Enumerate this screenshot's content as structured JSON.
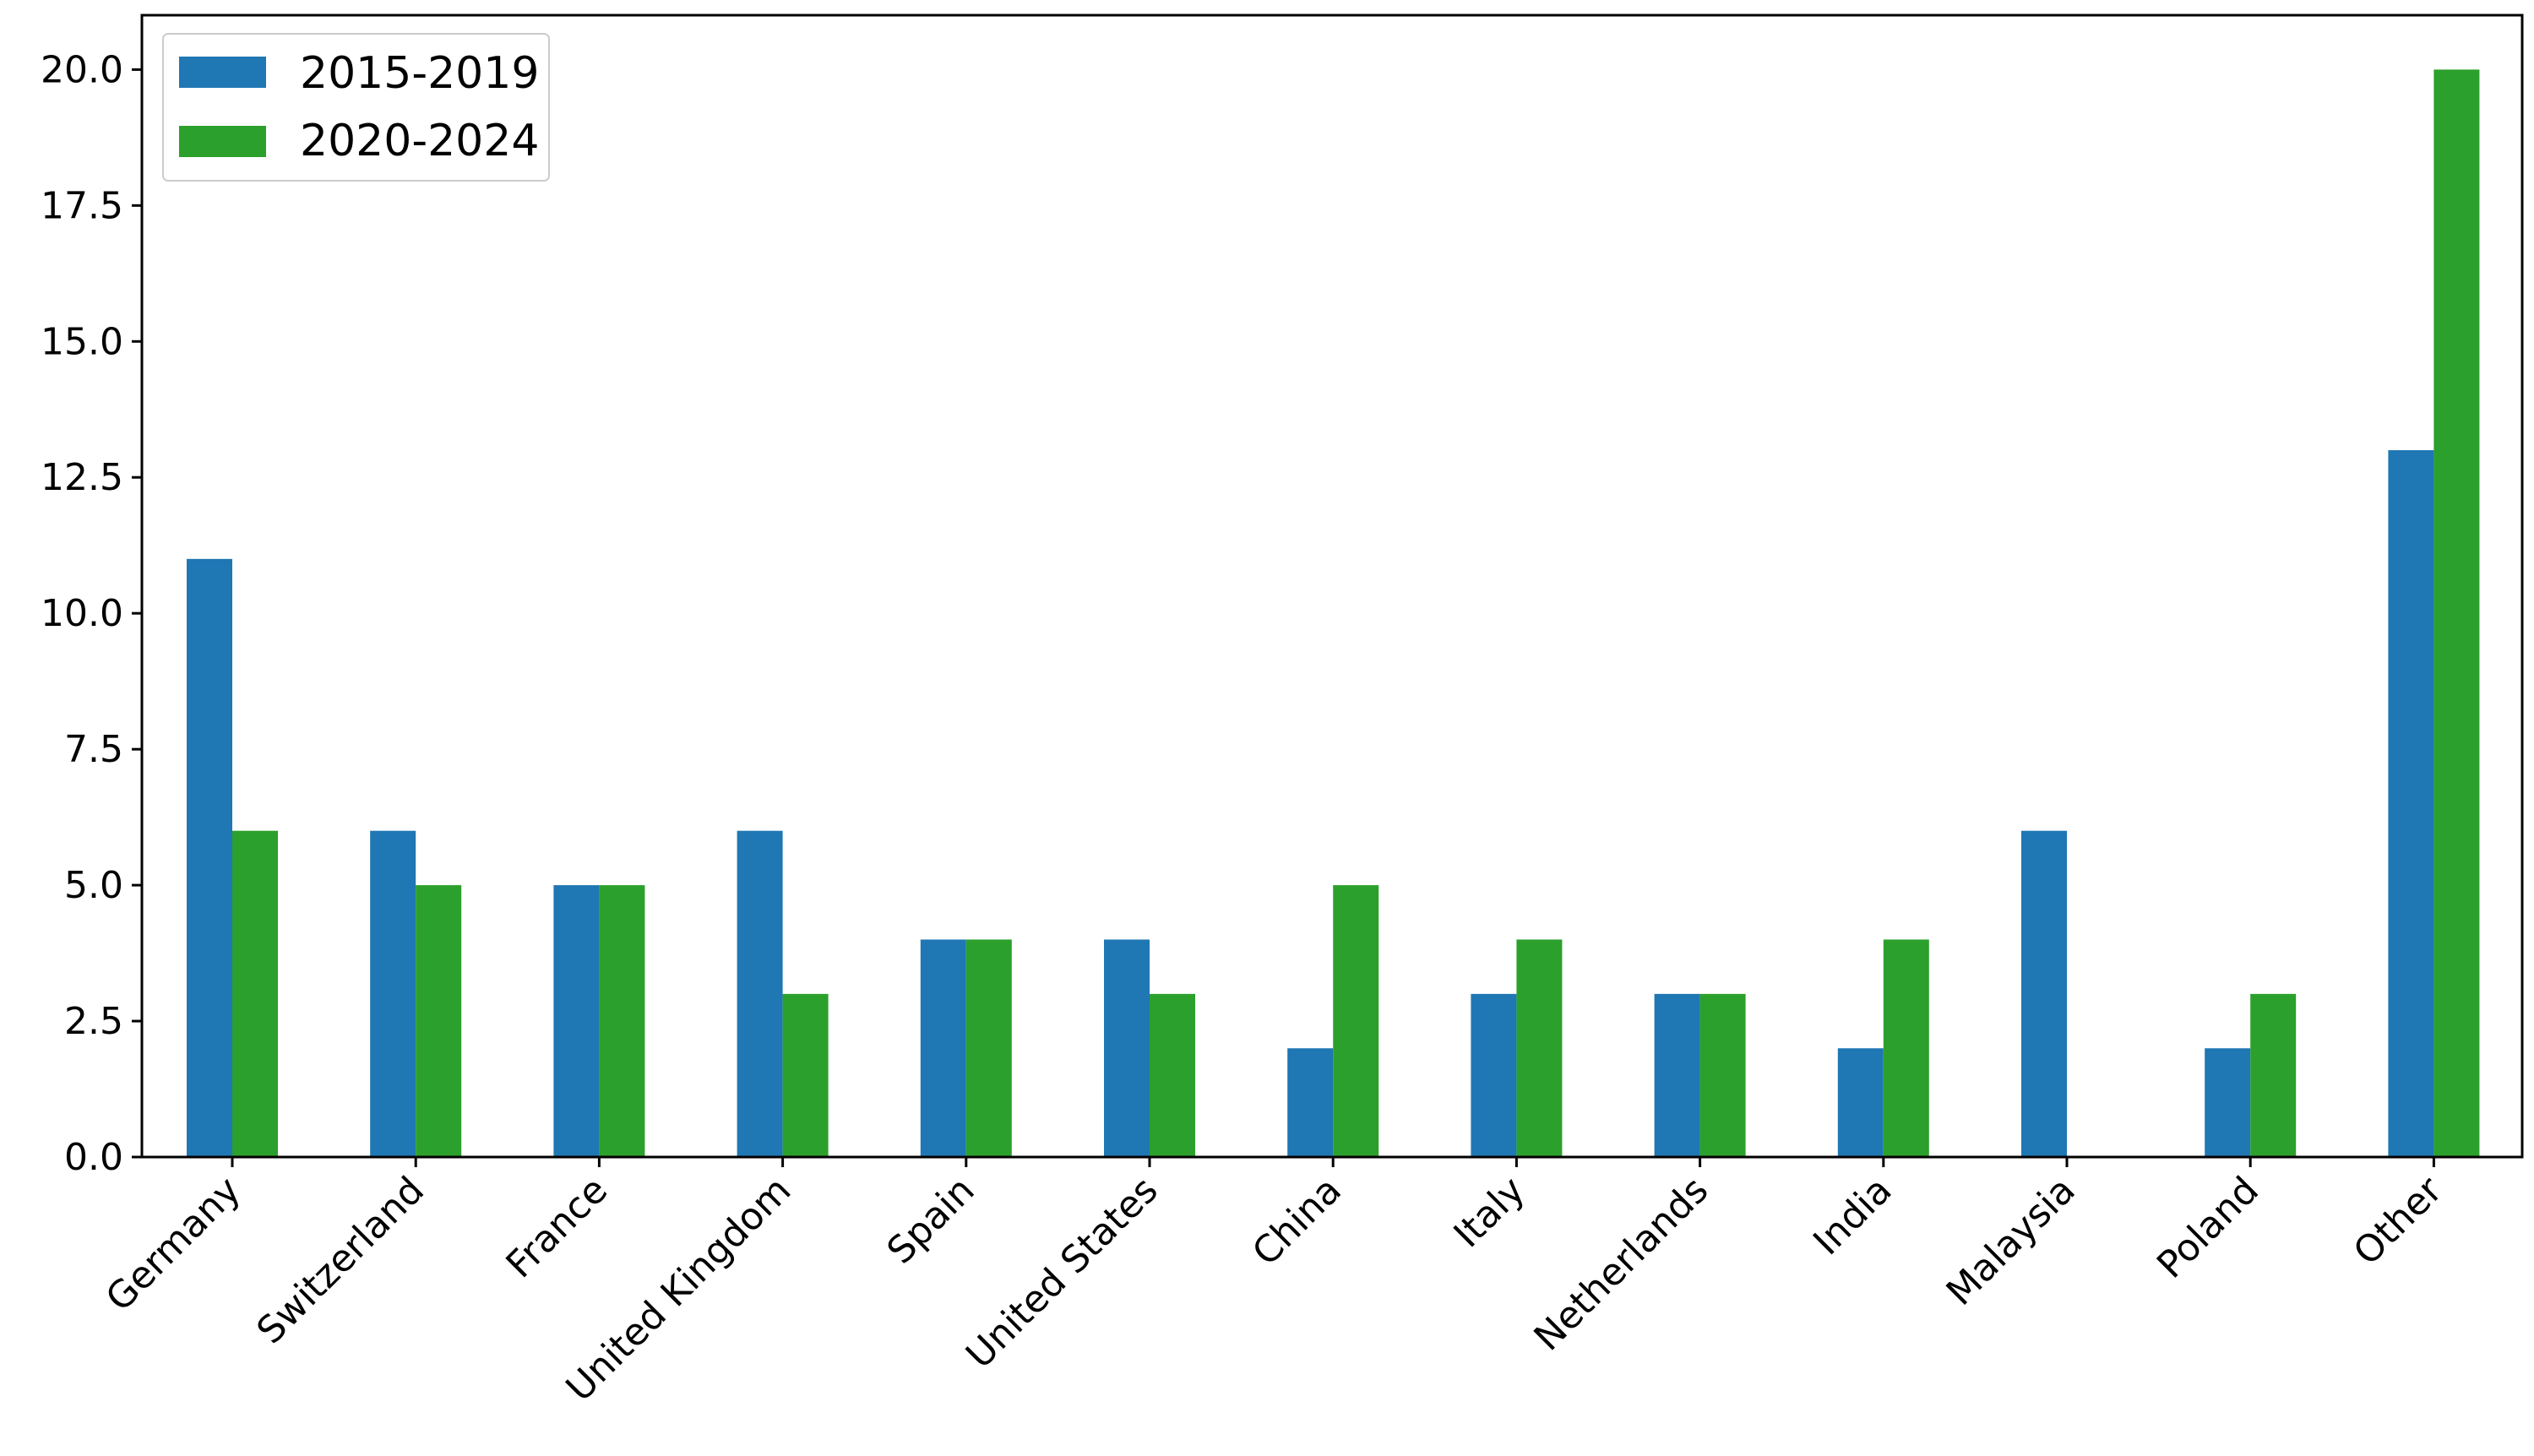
{
  "chart_data": {
    "type": "bar",
    "title": "",
    "xlabel": "",
    "ylabel": "",
    "categories": [
      "Germany",
      "Switzerland",
      "France",
      "United Kingdom",
      "Spain",
      "United States",
      "China",
      "Italy",
      "Netherlands",
      "India",
      "Malaysia",
      "Poland",
      "Other"
    ],
    "series": [
      {
        "name": "2015-2019",
        "color": "#1f77b4",
        "values": [
          11,
          6,
          5,
          6,
          4,
          4,
          2,
          3,
          3,
          2,
          6,
          2,
          13
        ]
      },
      {
        "name": "2020-2024",
        "color": "#2ca02c",
        "values": [
          6,
          5,
          5,
          3,
          4,
          3,
          5,
          4,
          3,
          4,
          0,
          3,
          20
        ]
      }
    ],
    "ylim": [
      0,
      21
    ],
    "yticks": [
      "0.0",
      "2.5",
      "5.0",
      "7.5",
      "10.0",
      "12.5",
      "15.0",
      "17.5",
      "20.0"
    ],
    "grid": false,
    "legend_position": "top-left"
  }
}
